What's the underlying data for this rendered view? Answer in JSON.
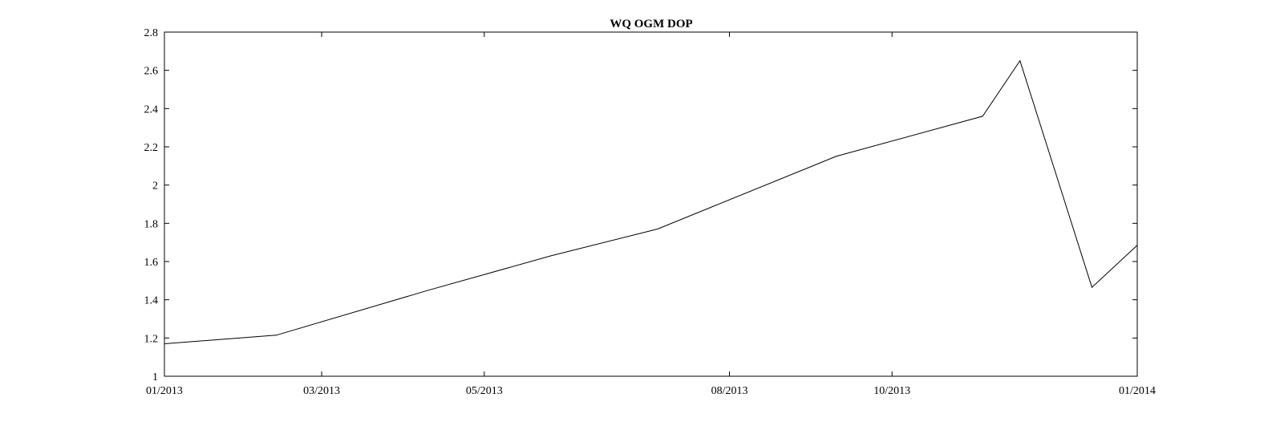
{
  "chart_data": {
    "type": "line",
    "title": "WQ OGM DOP",
    "xlabel": "",
    "ylabel": "",
    "x": [
      "2013-01-01",
      "2013-02-12",
      "2013-04-10",
      "2013-05-26",
      "2013-07-05",
      "2013-09-10",
      "2013-11-04",
      "2013-11-18",
      "2013-12-15",
      "2014-01-01"
    ],
    "values": [
      1.17,
      1.215,
      1.45,
      1.63,
      1.77,
      2.15,
      2.36,
      2.65,
      1.465,
      1.685
    ],
    "xlim": [
      "2013-01-01",
      "2014-01-01"
    ],
    "ylim": [
      1,
      2.8
    ],
    "x_ticks": [
      {
        "date": "2013-01-01",
        "label": "01/2013"
      },
      {
        "date": "2013-03-01",
        "label": "03/2013"
      },
      {
        "date": "2013-05-01",
        "label": "05/2013"
      },
      {
        "date": "2013-08-01",
        "label": "08/2013"
      },
      {
        "date": "2013-10-01",
        "label": "10/2013"
      },
      {
        "date": "2014-01-01",
        "label": "01/2014"
      }
    ],
    "y_ticks": [
      1,
      1.2,
      1.4,
      1.6,
      1.8,
      2,
      2.2,
      2.4,
      2.6,
      2.8
    ],
    "y_tick_labels": [
      "1",
      "1.2",
      "1.4",
      "1.6",
      "1.8",
      "2",
      "2.2",
      "2.4",
      "2.6",
      "2.8"
    ],
    "grid": false,
    "line_color": "#000000",
    "background": "#ffffff"
  }
}
